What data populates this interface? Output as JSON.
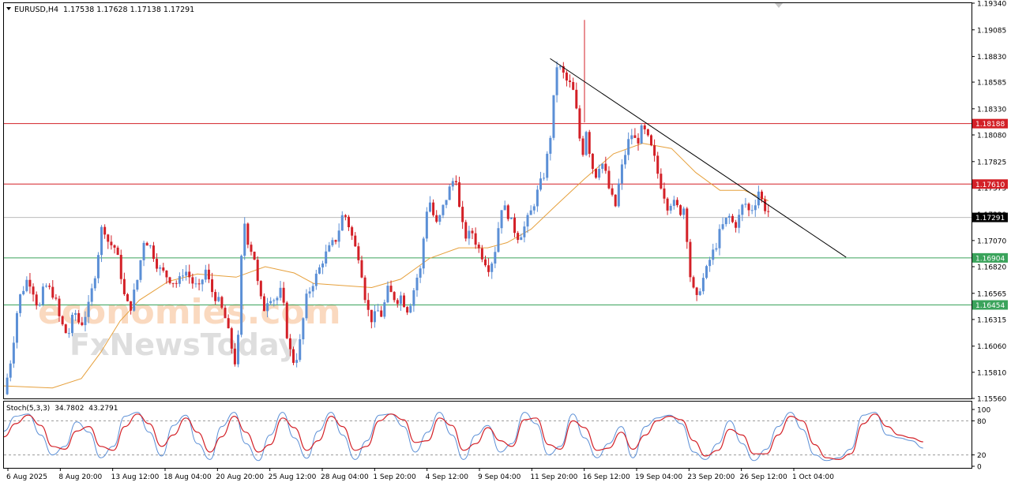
{
  "header": {
    "symbol": "EURUSD,H4",
    "ohlc": "1.17538 1.17628 1.17138 1.17291"
  },
  "watermark": {
    "line1": "economies.com",
    "line2": "FxNewsToday"
  },
  "colors": {
    "bull": "#5b8fd6",
    "bear": "#d32027",
    "ma": "#e6a03c",
    "resistance": "#d32027",
    "support": "#3aa35b",
    "trendline": "#000000",
    "stoch_main": "#5b8fd6",
    "stoch_signal": "#d32027",
    "current_price_bg": "#000000"
  },
  "chart_data": {
    "type": "candlestick",
    "symbol": "EURUSD",
    "timeframe": "H4",
    "ylim": [
      1.1556,
      1.1934
    ],
    "price_ticks": [
      "1.19340",
      "1.19085",
      "1.18830",
      "1.18585",
      "1.18330",
      "1.18080",
      "1.17825",
      "1.17575",
      "1.17320",
      "1.17070",
      "1.16820",
      "1.16565",
      "1.16315",
      "1.16060",
      "1.15810",
      "1.15560"
    ],
    "time_labels": [
      "6 Aug 2025",
      "8 Aug 20:00",
      "13 Aug 12:00",
      "18 Aug 04:00",
      "20 Aug 20:00",
      "25 Aug 12:00",
      "28 Aug 04:00",
      "1 Sep 20:00",
      "4 Sep 12:00",
      "9 Sep 04:00",
      "11 Sep 20:00",
      "16 Sep 12:00",
      "19 Sep 04:00",
      "23 Sep 20:00",
      "26 Sep 12:00",
      "1 Oct 04:00"
    ],
    "horizontal_levels": [
      {
        "price": 1.18188,
        "label": "1.18188",
        "kind": "resistance"
      },
      {
        "price": 1.1761,
        "label": "1.17610",
        "kind": "resistance"
      },
      {
        "price": 1.16904,
        "label": "1.16904",
        "kind": "support"
      },
      {
        "price": 1.16454,
        "label": "1.16454",
        "kind": "support"
      }
    ],
    "current_price": {
      "price": 1.17291,
      "label": "1.17291"
    },
    "trendline": [
      {
        "t": 0.5645,
        "price": 1.1881
      },
      {
        "t": 0.8704,
        "price": 1.1691
      }
    ],
    "close_path": [
      [
        0.0,
        1.156
      ],
      [
        0.008,
        1.1598
      ],
      [
        0.015,
        1.165
      ],
      [
        0.025,
        1.1672
      ],
      [
        0.03,
        1.166
      ],
      [
        0.036,
        1.164
      ],
      [
        0.042,
        1.1665
      ],
      [
        0.052,
        1.1655
      ],
      [
        0.058,
        1.163
      ],
      [
        0.066,
        1.1615
      ],
      [
        0.073,
        1.164
      ],
      [
        0.079,
        1.1625
      ],
      [
        0.088,
        1.1645
      ],
      [
        0.095,
        1.168
      ],
      [
        0.102,
        1.1725
      ],
      [
        0.108,
        1.1705
      ],
      [
        0.115,
        1.17
      ],
      [
        0.12,
        1.168
      ],
      [
        0.124,
        1.1655
      ],
      [
        0.13,
        1.164
      ],
      [
        0.138,
        1.167
      ],
      [
        0.145,
        1.171
      ],
      [
        0.152,
        1.17
      ],
      [
        0.16,
        1.168
      ],
      [
        0.166,
        1.1675
      ],
      [
        0.172,
        1.167
      ],
      [
        0.18,
        1.1665
      ],
      [
        0.186,
        1.168
      ],
      [
        0.19,
        1.1675
      ],
      [
        0.196,
        1.1665
      ],
      [
        0.202,
        1.166
      ],
      [
        0.208,
        1.168
      ],
      [
        0.214,
        1.166
      ],
      [
        0.221,
        1.165
      ],
      [
        0.228,
        1.1635
      ],
      [
        0.234,
        1.161
      ],
      [
        0.239,
        1.159
      ],
      [
        0.243,
        1.162
      ],
      [
        0.247,
        1.1735
      ],
      [
        0.251,
        1.171
      ],
      [
        0.255,
        1.17
      ],
      [
        0.259,
        1.169
      ],
      [
        0.263,
        1.166
      ],
      [
        0.268,
        1.164
      ],
      [
        0.274,
        1.1655
      ],
      [
        0.281,
        1.165
      ],
      [
        0.287,
        1.166
      ],
      [
        0.292,
        1.162
      ],
      [
        0.297,
        1.1595
      ],
      [
        0.301,
        1.159
      ],
      [
        0.306,
        1.161
      ],
      [
        0.312,
        1.165
      ],
      [
        0.318,
        1.1665
      ],
      [
        0.324,
        1.1675
      ],
      [
        0.33,
        1.169
      ],
      [
        0.337,
        1.17
      ],
      [
        0.344,
        1.171
      ],
      [
        0.351,
        1.1735
      ],
      [
        0.357,
        1.172
      ],
      [
        0.363,
        1.17
      ],
      [
        0.368,
        1.169
      ],
      [
        0.372,
        1.166
      ],
      [
        0.376,
        1.164
      ],
      [
        0.381,
        1.163
      ],
      [
        0.386,
        1.164
      ],
      [
        0.391,
        1.1635
      ],
      [
        0.396,
        1.166
      ],
      [
        0.401,
        1.1655
      ],
      [
        0.406,
        1.165
      ],
      [
        0.411,
        1.1655
      ],
      [
        0.416,
        1.164
      ],
      [
        0.421,
        1.165
      ],
      [
        0.426,
        1.167
      ],
      [
        0.431,
        1.168
      ],
      [
        0.436,
        1.1735
      ],
      [
        0.441,
        1.1745
      ],
      [
        0.446,
        1.172
      ],
      [
        0.451,
        1.173
      ],
      [
        0.456,
        1.1745
      ],
      [
        0.462,
        1.176
      ],
      [
        0.467,
        1.177
      ],
      [
        0.472,
        1.1725
      ],
      [
        0.478,
        1.171
      ],
      [
        0.484,
        1.1715
      ],
      [
        0.49,
        1.17
      ],
      [
        0.496,
        1.169
      ],
      [
        0.502,
        1.168
      ],
      [
        0.508,
        1.17
      ],
      [
        0.514,
        1.174
      ],
      [
        0.52,
        1.1735
      ],
      [
        0.526,
        1.172
      ],
      [
        0.532,
        1.171
      ],
      [
        0.538,
        1.172
      ],
      [
        0.545,
        1.1735
      ],
      [
        0.552,
        1.1755
      ],
      [
        0.558,
        1.177
      ],
      [
        0.564,
        1.18
      ],
      [
        0.568,
        1.184
      ],
      [
        0.571,
        1.1875
      ],
      [
        0.576,
        1.187
      ],
      [
        0.581,
        1.186
      ],
      [
        0.586,
        1.1855
      ],
      [
        0.59,
        1.1845
      ],
      [
        0.594,
        1.181
      ],
      [
        0.598,
        1.179
      ],
      [
        0.602,
        1.1815
      ],
      [
        0.607,
        1.178
      ],
      [
        0.612,
        1.177
      ],
      [
        0.617,
        1.1785
      ],
      [
        0.622,
        1.177
      ],
      [
        0.627,
        1.175
      ],
      [
        0.632,
        1.174
      ],
      [
        0.637,
        1.177
      ],
      [
        0.642,
        1.179
      ],
      [
        0.648,
        1.181
      ],
      [
        0.654,
        1.18
      ],
      [
        0.66,
        1.1815
      ],
      [
        0.665,
        1.1805
      ],
      [
        0.671,
        1.179
      ],
      [
        0.676,
        1.177
      ],
      [
        0.681,
        1.1755
      ],
      [
        0.686,
        1.174
      ],
      [
        0.69,
        1.1745
      ],
      [
        0.694,
        1.174
      ],
      [
        0.699,
        1.1735
      ],
      [
        0.704,
        1.174
      ],
      [
        0.708,
        1.168
      ],
      [
        0.712,
        1.166
      ],
      [
        0.716,
        1.165
      ],
      [
        0.72,
        1.1665
      ],
      [
        0.725,
        1.1675
      ],
      [
        0.73,
        1.169
      ],
      [
        0.735,
        1.17
      ],
      [
        0.74,
        1.1715
      ],
      [
        0.745,
        1.1725
      ],
      [
        0.75,
        1.173
      ],
      [
        0.755,
        1.172
      ],
      [
        0.76,
        1.173
      ],
      [
        0.765,
        1.1745
      ],
      [
        0.77,
        1.1735
      ],
      [
        0.775,
        1.174
      ],
      [
        0.78,
        1.1755
      ],
      [
        0.785,
        1.174
      ],
      [
        0.79,
        1.1735
      ]
    ],
    "close_path_note": "",
    "ma_path": [
      [
        0.0,
        1.1568
      ],
      [
        0.05,
        1.1566
      ],
      [
        0.08,
        1.1575
      ],
      [
        0.1,
        1.16
      ],
      [
        0.12,
        1.163
      ],
      [
        0.14,
        1.165
      ],
      [
        0.17,
        1.1668
      ],
      [
        0.2,
        1.1675
      ],
      [
        0.24,
        1.1672
      ],
      [
        0.27,
        1.1682
      ],
      [
        0.3,
        1.1676
      ],
      [
        0.32,
        1.1666
      ],
      [
        0.35,
        1.1664
      ],
      [
        0.38,
        1.1662
      ],
      [
        0.41,
        1.167
      ],
      [
        0.44,
        1.169
      ],
      [
        0.47,
        1.17
      ],
      [
        0.5,
        1.17
      ],
      [
        0.52,
        1.1705
      ],
      [
        0.545,
        1.1718
      ],
      [
        0.57,
        1.174
      ],
      [
        0.6,
        1.1766
      ],
      [
        0.63,
        1.179
      ],
      [
        0.66,
        1.18
      ],
      [
        0.69,
        1.1795
      ],
      [
        0.715,
        1.1772
      ],
      [
        0.74,
        1.1755
      ],
      [
        0.765,
        1.1755
      ],
      [
        0.79,
        1.1745
      ]
    ],
    "indicator": {
      "name": "Stoch(5,3,3)",
      "main": "34.7802",
      "signal": "43.2791",
      "ylim": [
        0,
        100
      ],
      "levels": [
        80,
        20
      ],
      "tick_labels": [
        "100",
        "80",
        "20",
        "0"
      ],
      "main_path": [
        [
          0.0,
          62
        ],
        [
          0.012,
          88
        ],
        [
          0.025,
          92
        ],
        [
          0.038,
          55
        ],
        [
          0.05,
          20
        ],
        [
          0.063,
          35
        ],
        [
          0.075,
          78
        ],
        [
          0.088,
          60
        ],
        [
          0.1,
          15
        ],
        [
          0.113,
          35
        ],
        [
          0.125,
          88
        ],
        [
          0.138,
          95
        ],
        [
          0.15,
          60
        ],
        [
          0.163,
          18
        ],
        [
          0.175,
          72
        ],
        [
          0.188,
          90
        ],
        [
          0.2,
          40
        ],
        [
          0.213,
          12
        ],
        [
          0.225,
          70
        ],
        [
          0.238,
          95
        ],
        [
          0.25,
          40
        ],
        [
          0.263,
          10
        ],
        [
          0.275,
          55
        ],
        [
          0.288,
          95
        ],
        [
          0.3,
          50
        ],
        [
          0.313,
          14
        ],
        [
          0.325,
          62
        ],
        [
          0.338,
          95
        ],
        [
          0.35,
          55
        ],
        [
          0.363,
          12
        ],
        [
          0.375,
          45
        ],
        [
          0.388,
          90
        ],
        [
          0.4,
          92
        ],
        [
          0.413,
          70
        ],
        [
          0.425,
          25
        ],
        [
          0.438,
          60
        ],
        [
          0.45,
          95
        ],
        [
          0.463,
          55
        ],
        [
          0.475,
          12
        ],
        [
          0.488,
          55
        ],
        [
          0.5,
          72
        ],
        [
          0.513,
          25
        ],
        [
          0.525,
          40
        ],
        [
          0.538,
          95
        ],
        [
          0.55,
          75
        ],
        [
          0.563,
          20
        ],
        [
          0.575,
          35
        ],
        [
          0.588,
          92
        ],
        [
          0.6,
          50
        ],
        [
          0.613,
          15
        ],
        [
          0.625,
          40
        ],
        [
          0.638,
          70
        ],
        [
          0.65,
          15
        ],
        [
          0.663,
          70
        ],
        [
          0.675,
          85
        ],
        [
          0.688,
          90
        ],
        [
          0.7,
          75
        ],
        [
          0.713,
          25
        ],
        [
          0.725,
          12
        ],
        [
          0.738,
          40
        ],
        [
          0.75,
          80
        ],
        [
          0.763,
          40
        ],
        [
          0.775,
          10
        ],
        [
          0.788,
          30
        ],
        [
          0.8,
          70
        ],
        [
          0.813,
          95
        ],
        [
          0.825,
          65
        ],
        [
          0.838,
          20
        ],
        [
          0.85,
          10
        ],
        [
          0.863,
          15
        ],
        [
          0.875,
          30
        ],
        [
          0.888,
          90
        ],
        [
          0.9,
          95
        ],
        [
          0.913,
          55
        ],
        [
          0.925,
          50
        ],
        [
          0.938,
          45
        ],
        [
          0.95,
          32
        ]
      ],
      "signal_path": [
        [
          0.0,
          52
        ],
        [
          0.012,
          75
        ],
        [
          0.025,
          90
        ],
        [
          0.038,
          72
        ],
        [
          0.05,
          35
        ],
        [
          0.063,
          30
        ],
        [
          0.075,
          62
        ],
        [
          0.088,
          70
        ],
        [
          0.1,
          35
        ],
        [
          0.113,
          28
        ],
        [
          0.125,
          70
        ],
        [
          0.138,
          92
        ],
        [
          0.15,
          75
        ],
        [
          0.163,
          35
        ],
        [
          0.175,
          55
        ],
        [
          0.188,
          85
        ],
        [
          0.2,
          60
        ],
        [
          0.213,
          25
        ],
        [
          0.225,
          52
        ],
        [
          0.238,
          88
        ],
        [
          0.25,
          60
        ],
        [
          0.263,
          25
        ],
        [
          0.275,
          38
        ],
        [
          0.288,
          85
        ],
        [
          0.3,
          68
        ],
        [
          0.313,
          28
        ],
        [
          0.325,
          45
        ],
        [
          0.338,
          88
        ],
        [
          0.35,
          70
        ],
        [
          0.363,
          28
        ],
        [
          0.375,
          35
        ],
        [
          0.388,
          80
        ],
        [
          0.4,
          92
        ],
        [
          0.413,
          82
        ],
        [
          0.425,
          42
        ],
        [
          0.438,
          45
        ],
        [
          0.45,
          85
        ],
        [
          0.463,
          72
        ],
        [
          0.475,
          28
        ],
        [
          0.488,
          40
        ],
        [
          0.5,
          68
        ],
        [
          0.513,
          45
        ],
        [
          0.525,
          35
        ],
        [
          0.538,
          82
        ],
        [
          0.55,
          85
        ],
        [
          0.563,
          38
        ],
        [
          0.575,
          30
        ],
        [
          0.588,
          80
        ],
        [
          0.6,
          68
        ],
        [
          0.613,
          28
        ],
        [
          0.625,
          32
        ],
        [
          0.638,
          60
        ],
        [
          0.65,
          30
        ],
        [
          0.663,
          55
        ],
        [
          0.675,
          80
        ],
        [
          0.688,
          88
        ],
        [
          0.7,
          82
        ],
        [
          0.713,
          45
        ],
        [
          0.725,
          18
        ],
        [
          0.738,
          28
        ],
        [
          0.75,
          65
        ],
        [
          0.763,
          55
        ],
        [
          0.775,
          22
        ],
        [
          0.788,
          22
        ],
        [
          0.8,
          55
        ],
        [
          0.813,
          88
        ],
        [
          0.825,
          80
        ],
        [
          0.838,
          38
        ],
        [
          0.85,
          15
        ],
        [
          0.863,
          12
        ],
        [
          0.875,
          22
        ],
        [
          0.888,
          75
        ],
        [
          0.9,
          92
        ],
        [
          0.913,
          70
        ],
        [
          0.925,
          55
        ],
        [
          0.938,
          50
        ],
        [
          0.95,
          43
        ]
      ]
    }
  }
}
